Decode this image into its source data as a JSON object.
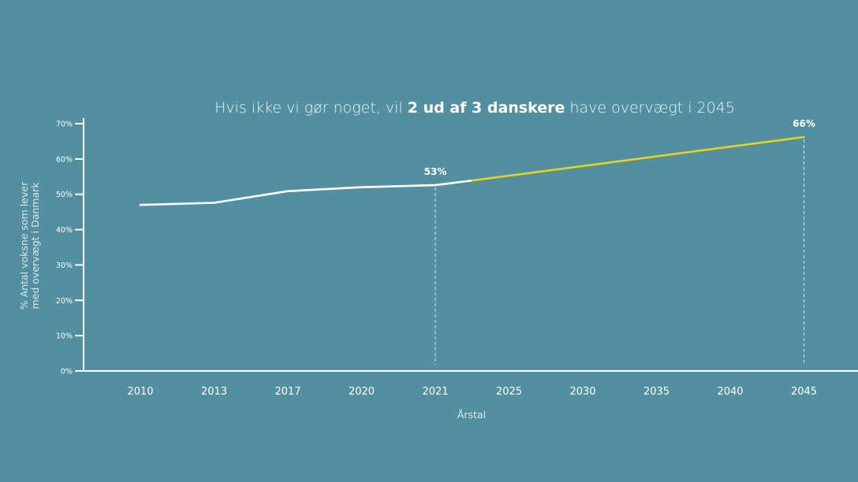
{
  "chart_data": {
    "type": "line",
    "title_parts": [
      {
        "text": "Hvis ikke vi gør noget, vil ",
        "bold": false
      },
      {
        "text": "2 ud af 3 danskere",
        "bold": true
      },
      {
        "text": " have overvægt i 2045",
        "bold": false
      }
    ],
    "xlabel": "Årstal",
    "ylabel_lines": [
      "% Antal voksne som lever",
      "med overvægt i Danmark"
    ],
    "categories": [
      "2010",
      "2013",
      "2017",
      "2020",
      "2021",
      "2025",
      "2030",
      "2035",
      "2040",
      "2045"
    ],
    "ylim": [
      0,
      70
    ],
    "yticks": [
      {
        "value": 0,
        "label": "0%"
      },
      {
        "value": 10,
        "label": "10%"
      },
      {
        "value": 20,
        "label": "20%"
      },
      {
        "value": 30,
        "label": "30%"
      },
      {
        "value": 40,
        "label": "40%"
      },
      {
        "value": 50,
        "label": "50%"
      },
      {
        "value": 60,
        "label": "60%"
      },
      {
        "value": 70,
        "label": "70%"
      }
    ],
    "series": [
      {
        "segment": "historical",
        "color": "#ffffff",
        "points": [
          {
            "x": 0,
            "y": 47.0
          },
          {
            "x": 1,
            "y": 47.6
          },
          {
            "x": 2,
            "y": 50.9
          },
          {
            "x": 3,
            "y": 52.0
          },
          {
            "x": 4,
            "y": 52.6
          },
          {
            "x": 4.5,
            "y": 53.9
          }
        ]
      },
      {
        "segment": "projection",
        "color": "#e8d21a",
        "points": [
          {
            "x": 4.5,
            "y": 53.9
          },
          {
            "x": 9,
            "y": 66.2
          }
        ]
      }
    ],
    "annotations": [
      {
        "x": 4,
        "y": 52.6,
        "label": "53%"
      },
      {
        "x": 9,
        "y": 66.2,
        "label": "66%"
      }
    ],
    "grid": false,
    "legend": "none"
  }
}
